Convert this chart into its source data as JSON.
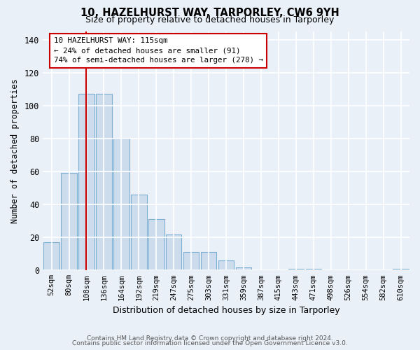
{
  "title": "10, HAZELHURST WAY, TARPORLEY, CW6 9YH",
  "subtitle": "Size of property relative to detached houses in Tarporley",
  "xlabel": "Distribution of detached houses by size in Tarporley",
  "ylabel": "Number of detached properties",
  "categories": [
    "52sqm",
    "80sqm",
    "108sqm",
    "136sqm",
    "164sqm",
    "192sqm",
    "219sqm",
    "247sqm",
    "275sqm",
    "303sqm",
    "331sqm",
    "359sqm",
    "387sqm",
    "415sqm",
    "443sqm",
    "471sqm",
    "498sqm",
    "526sqm",
    "554sqm",
    "582sqm",
    "610sqm"
  ],
  "values": [
    17,
    59,
    107,
    107,
    80,
    46,
    31,
    22,
    11,
    11,
    6,
    2,
    0,
    0,
    1,
    1,
    0,
    0,
    0,
    0,
    1
  ],
  "bar_color": "#cddcec",
  "bar_edge_color": "#7bafd4",
  "ylim": [
    0,
    145
  ],
  "yticks": [
    0,
    20,
    40,
    60,
    80,
    100,
    120,
    140
  ],
  "annotation_line1": "10 HAZELHURST WAY: 115sqm",
  "annotation_line2": "← 24% of detached houses are smaller (91)",
  "annotation_line3": "74% of semi-detached houses are larger (278) →",
  "footer1": "Contains HM Land Registry data © Crown copyright and database right 2024.",
  "footer2": "Contains public sector information licensed under the Open Government Licence v3.0.",
  "background_color": "#eaf0f8",
  "grid_color": "#ffffff",
  "bar_width": 0.9
}
